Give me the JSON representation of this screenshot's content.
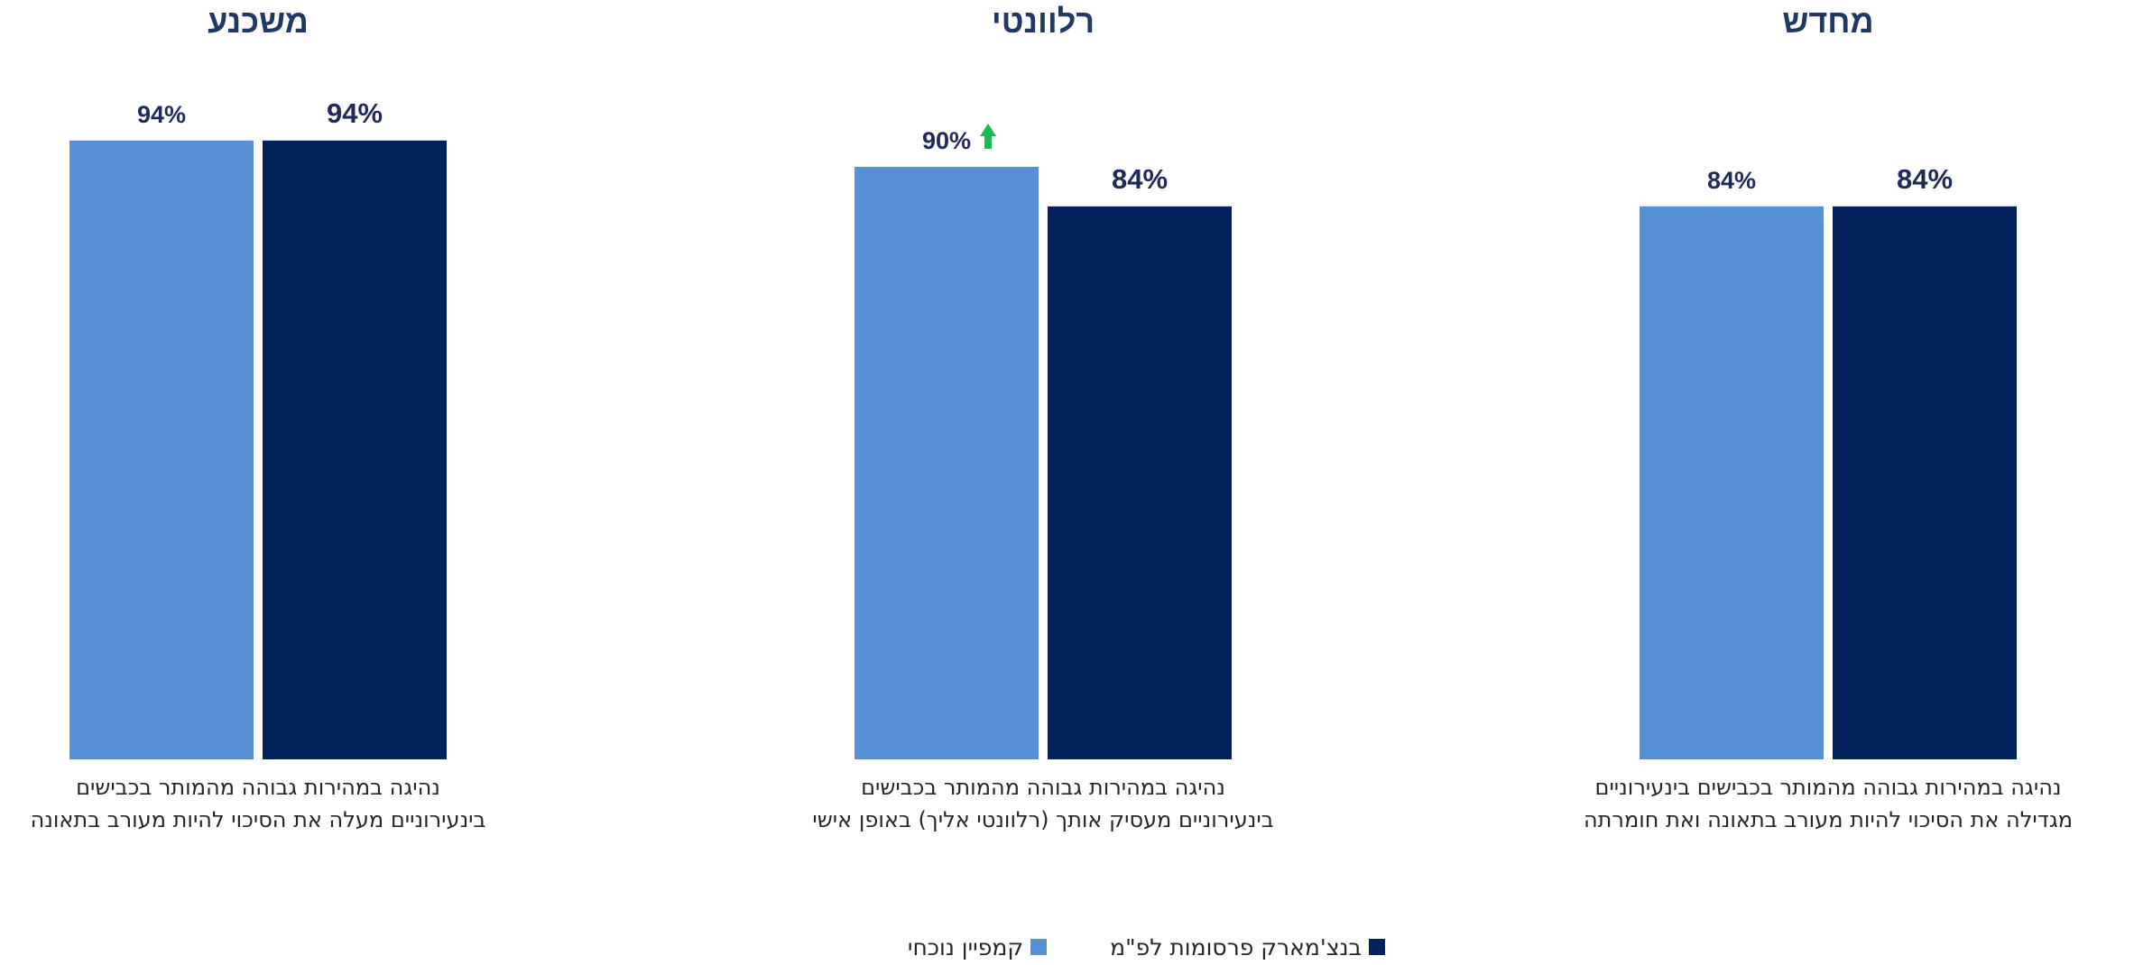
{
  "chart_data": {
    "type": "bar",
    "colors": {
      "current": "#5790d5",
      "benchmark": "#02215d",
      "up_arrow": "#1db954"
    },
    "ylim": [
      0,
      100
    ],
    "legend": {
      "items": [
        {
          "name": "בנצ'מארק פרסומות לפ\"מ",
          "color": "#02215d"
        },
        {
          "name": "קמפיין נוכחי",
          "color": "#5790d5"
        }
      ]
    },
    "panels": [
      {
        "title": "מחדש",
        "category_lines": [
          "נהיגה במהירות גבוהה מהמותר בכבישים בינעירוניים",
          "מגדילה את הסיכוי להיות מעורב בתאונה ואת חומרתה"
        ],
        "series": [
          {
            "name": "קמפיין נוכחי",
            "value": 84,
            "label": "84%",
            "up_arrow": false
          },
          {
            "name": "בנצ'מארק פרסומות לפ\"מ",
            "value": 84,
            "label": "84%"
          }
        ]
      },
      {
        "title": "רלוונטי",
        "category_lines": [
          "נהיגה במהירות גבוהה מהמותר בכבישים",
          "בינעירוניים מעסיק אותך (רלוונטי אליך) באופן אישי"
        ],
        "series": [
          {
            "name": "קמפיין נוכחי",
            "value": 90,
            "label": "90%",
            "up_arrow": true
          },
          {
            "name": "בנצ'מארק פרסומות לפ\"מ",
            "value": 84,
            "label": "84%"
          }
        ]
      },
      {
        "title": "משכנע",
        "category_lines": [
          "נהיגה במהירות גבוהה מהמותר בכבישים",
          "בינעירוניים מעלה את הסיכוי להיות מעורב בתאונה"
        ],
        "series": [
          {
            "name": "קמפיין נוכחי",
            "value": 94,
            "label": "94%",
            "up_arrow": false
          },
          {
            "name": "בנצ'מארק פרסומות לפ\"מ",
            "value": 94,
            "label": "94%"
          }
        ]
      }
    ]
  }
}
